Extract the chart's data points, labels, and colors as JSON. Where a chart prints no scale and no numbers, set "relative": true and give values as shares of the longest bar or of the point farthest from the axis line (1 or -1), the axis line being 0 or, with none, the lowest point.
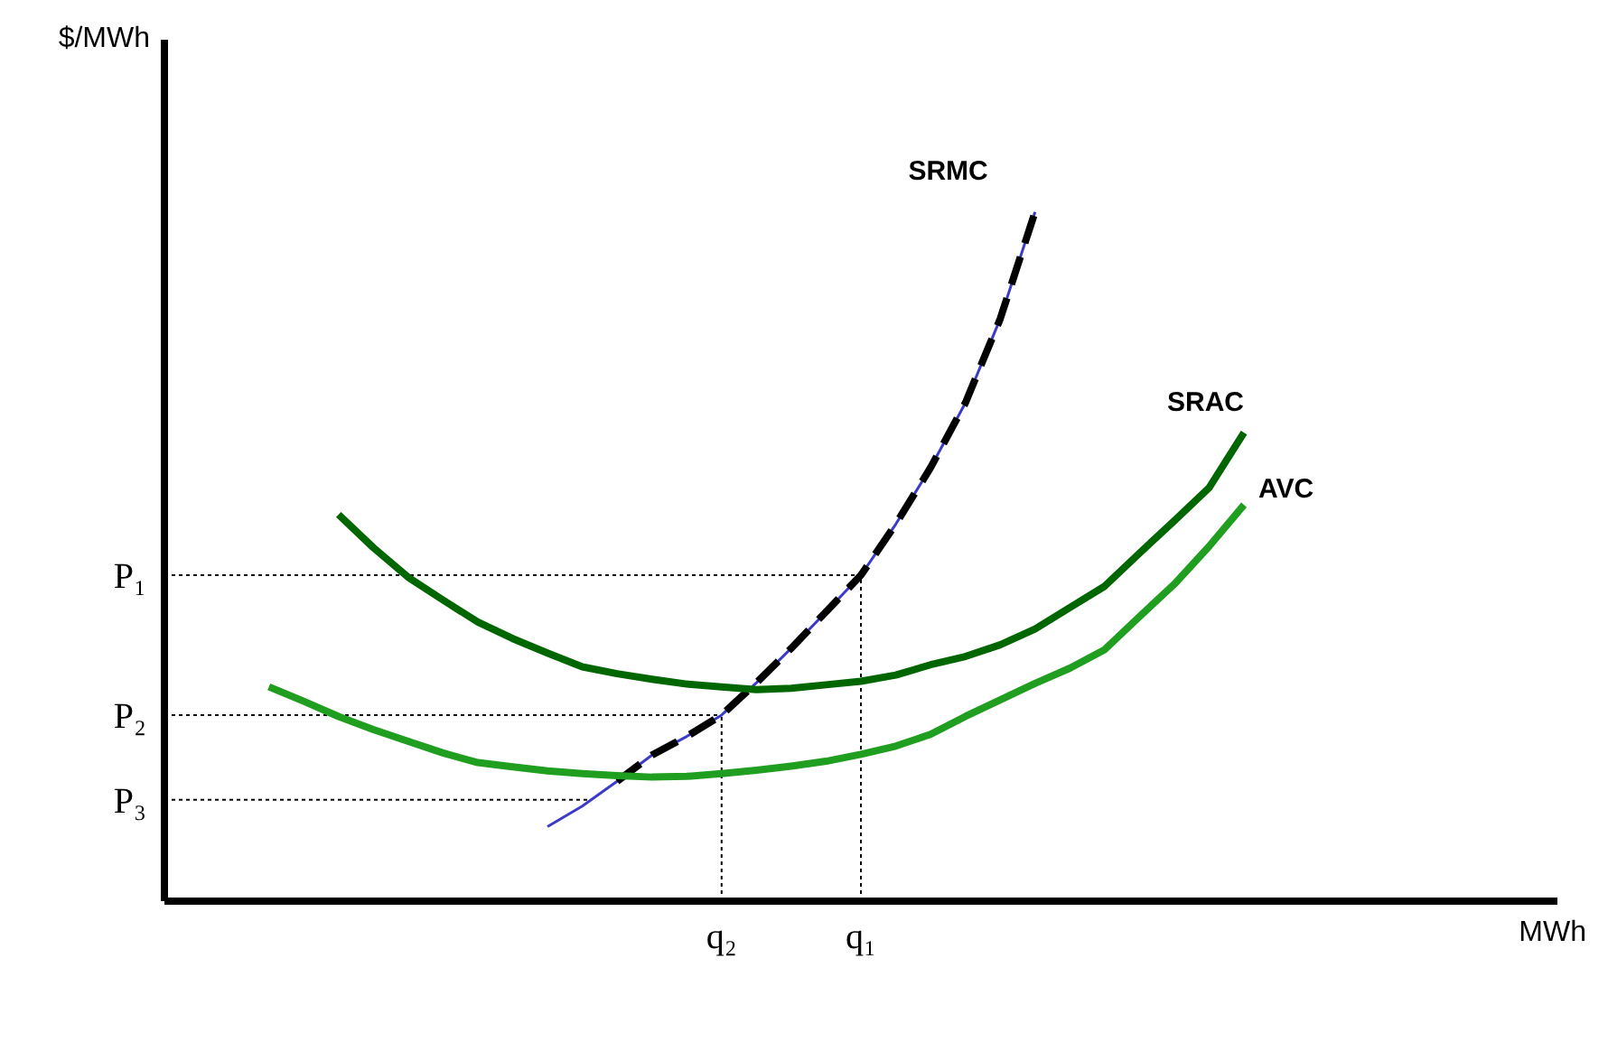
{
  "chart_data": {
    "type": "line",
    "relative": true,
    "xlabel": "MWh",
    "annotations": [
      "$/MWh"
    ],
    "legend": false,
    "marker": "none",
    "categories": [
      null,
      null,
      null,
      null,
      null,
      null,
      null,
      null,
      null,
      null,
      null,
      null,
      null,
      null,
      null,
      null,
      "q₂",
      null,
      null,
      null,
      "q₁",
      null,
      null,
      null,
      null,
      null,
      null,
      null,
      null,
      null,
      null,
      null,
      null,
      null,
      null,
      null,
      null,
      null,
      null,
      null,
      null
    ],
    "series": [
      {
        "name": "SRMC",
        "color": "#3b3bc8",
        "line_style": "solid",
        "values": [
          null,
          null,
          null,
          null,
          null,
          null,
          null,
          null,
          null,
          null,
          null,
          0.108,
          0.138,
          0.174,
          0.212,
          0.239,
          0.27,
          0.317,
          0.367,
          0.42,
          0.473,
          0.547,
          0.629,
          0.723,
          0.845,
          1,
          null,
          null,
          null,
          null,
          null,
          null,
          null,
          null,
          null,
          null,
          null,
          null,
          null,
          null,
          null
        ]
      },
      {
        "color": "#000000",
        "line_style": "dashed",
        "values": [
          null,
          null,
          null,
          null,
          null,
          null,
          null,
          null,
          null,
          null,
          null,
          null,
          null,
          0.174,
          0.212,
          0.239,
          0.27,
          0.317,
          0.367,
          0.42,
          0.473,
          0.547,
          0.629,
          0.723,
          0.845,
          1,
          null,
          null,
          null,
          null,
          null,
          null,
          null,
          null,
          null,
          null,
          null,
          null,
          null,
          null,
          null
        ]
      },
      {
        "name": "SRAC",
        "color": "#006600",
        "line_style": "solid",
        "values": [
          null,
          null,
          null,
          null,
          null,
          0.561,
          0.513,
          0.47,
          0.437,
          0.405,
          0.381,
          0.36,
          0.34,
          0.33,
          0.322,
          0.315,
          0.311,
          0.307,
          0.309,
          0.314,
          0.319,
          0.328,
          0.343,
          0.355,
          0.372,
          0.395,
          0.426,
          0.457,
          0.505,
          0.552,
          0.6,
          0.68,
          null,
          null,
          null,
          null,
          null,
          null,
          null,
          null,
          null
        ]
      },
      {
        "name": "AVC",
        "color": "#1f9e1f",
        "line_style": "solid",
        "values": [
          null,
          null,
          null,
          0.311,
          0.29,
          0.268,
          0.249,
          0.232,
          0.215,
          0.201,
          0.195,
          0.189,
          0.185,
          0.182,
          0.18,
          0.181,
          0.185,
          0.19,
          0.196,
          0.203,
          0.213,
          0.225,
          0.242,
          0.268,
          0.292,
          0.316,
          0.338,
          0.365,
          0.413,
          0.46,
          0.515,
          0.575,
          null,
          null,
          null,
          null,
          null,
          null,
          null,
          null,
          null
        ]
      }
    ],
    "ref_lines": [
      {
        "axis": "y",
        "value": 0.473,
        "label": "P₁",
        "color": "#000000",
        "line_style": "dotted"
      },
      {
        "axis": "y",
        "value": 0.27,
        "label": "P₂",
        "color": "#000000",
        "line_style": "dotted"
      },
      {
        "axis": "y",
        "value": 0.147,
        "label": "P₃",
        "color": "#000000",
        "line_style": "dotted"
      },
      {
        "axis": "x",
        "value": "q₁",
        "color": "#000000",
        "line_style": "dotted"
      },
      {
        "axis": "x",
        "value": "q₂",
        "color": "#000000",
        "line_style": "dotted"
      }
    ]
  }
}
